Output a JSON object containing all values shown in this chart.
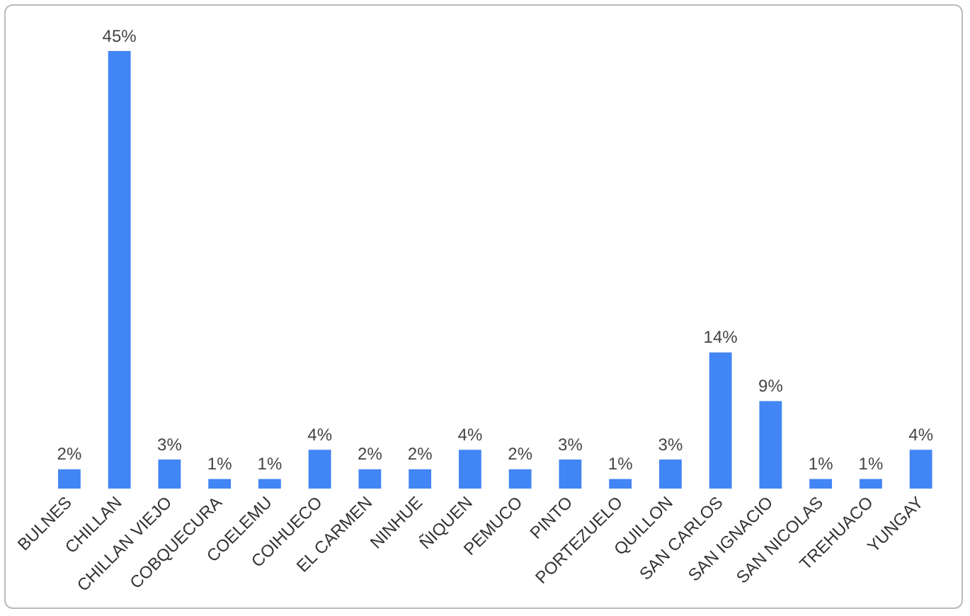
{
  "chart_data": {
    "type": "bar",
    "categories": [
      "BULNES",
      "CHILLAN",
      "CHILLAN VIEJO",
      "COBQUECURA",
      "COELEMU",
      "COIHUECO",
      "EL CARMEN",
      "NINHUE",
      "ÑIQUEN",
      "PEMUCO",
      "PINTO",
      "PORTEZUELO",
      "QUILLON",
      "SAN CARLOS",
      "SAN IGNACIO",
      "SAN NICOLAS",
      "TREHUACO",
      "YUNGAY"
    ],
    "values": [
      2,
      45,
      3,
      1,
      1,
      4,
      2,
      2,
      4,
      2,
      3,
      1,
      3,
      14,
      9,
      1,
      1,
      4
    ],
    "value_labels": [
      "2%",
      "45%",
      "3%",
      "1%",
      "1%",
      "4%",
      "2%",
      "2%",
      "4%",
      "2%",
      "3%",
      "1%",
      "3%",
      "14%",
      "9%",
      "1%",
      "1%",
      "4%"
    ],
    "color": "#4285f4",
    "grid": false,
    "legend": false
  }
}
